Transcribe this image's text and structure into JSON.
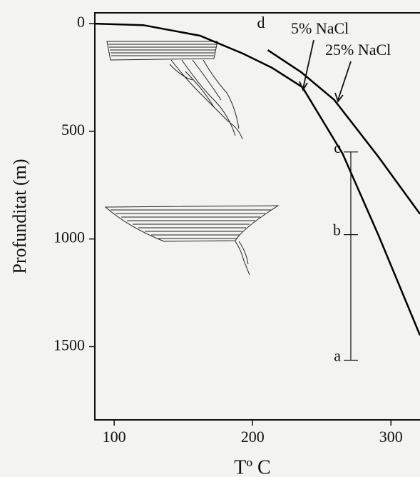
{
  "chart_data": {
    "type": "line",
    "x_label": "Tº C",
    "y_label": "Profunditat (m)",
    "xlim": [
      86,
      321
    ],
    "ylim": [
      -50,
      1840
    ],
    "invert_y": true,
    "xticks": [
      100,
      200,
      300
    ],
    "yticks": [
      0,
      500,
      1000,
      1500
    ],
    "series": [
      {
        "name": "5% NaCl",
        "color": "#000000",
        "x": [
          86,
          121,
          162,
          193,
          214,
          236,
          265,
          291,
          321
        ],
        "values": [
          0,
          7,
          56,
          139,
          205,
          295,
          603,
          983,
          1447
        ]
      },
      {
        "name": "25% NaCl",
        "color": "#000000",
        "x": [
          211,
          235,
          259,
          291,
          321
        ],
        "values": [
          123,
          225,
          354,
          619,
          884
        ]
      }
    ],
    "profile": {
      "temperature": 271,
      "markers": [
        {
          "label": "c",
          "depth": 596
        },
        {
          "label": "b",
          "depth": 980
        },
        {
          "label": "a",
          "depth": 1563
        }
      ]
    },
    "point_label": {
      "label": "d",
      "x": 212,
      "depth": 115
    }
  }
}
